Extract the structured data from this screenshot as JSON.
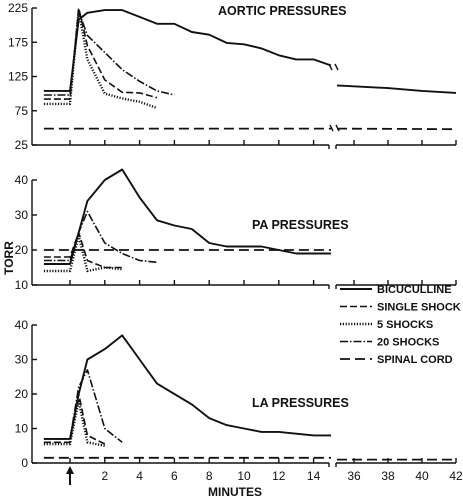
{
  "chart_data": [
    {
      "type": "line",
      "title": "AORTIC PRESSURES",
      "ylim": [
        25,
        225
      ],
      "yticks": [
        25,
        75,
        125,
        175,
        225
      ],
      "series": [
        {
          "name": "BICUCULLINE",
          "points": [
            [
              -1.5,
              104
            ],
            [
              0,
              104
            ],
            [
              0,
              104
            ],
            [
              0.5,
              208
            ],
            [
              1,
              218
            ],
            [
              2,
              222
            ],
            [
              3,
              222
            ],
            [
              4,
              212
            ],
            [
              5,
              202
            ],
            [
              6,
              202
            ],
            [
              7,
              190
            ],
            [
              8,
              186
            ],
            [
              9,
              174
            ],
            [
              10,
              172
            ],
            [
              11,
              166
            ],
            [
              12,
              156
            ],
            [
              13,
              150
            ],
            [
              14,
              150
            ],
            [
              15,
              141
            ],
            [
              35,
              112
            ],
            [
              38,
              108
            ],
            [
              40,
              104
            ],
            [
              42,
              101
            ]
          ]
        },
        {
          "name": "SINGLE SHOCK",
          "points": [
            [
              -1.5,
              92
            ],
            [
              0,
              92
            ],
            [
              0,
              92
            ],
            [
              0.5,
              225
            ],
            [
              1,
              170
            ],
            [
              2,
              120
            ],
            [
              3,
              102
            ],
            [
              4,
              101
            ],
            [
              5,
              94
            ]
          ]
        },
        {
          "name": "5 SHOCKS",
          "points": [
            [
              -1.5,
              85
            ],
            [
              0,
              85
            ],
            [
              0,
              85
            ],
            [
              0.5,
              222
            ],
            [
              1,
              150
            ],
            [
              2,
              100
            ],
            [
              3,
              93
            ],
            [
              4,
              88
            ],
            [
              5,
              79
            ]
          ]
        },
        {
          "name": "20 SHOCKS",
          "points": [
            [
              -1.5,
              98
            ],
            [
              0,
              98
            ],
            [
              0,
              98
            ],
            [
              0.5,
              220
            ],
            [
              1,
              185
            ],
            [
              2,
              160
            ],
            [
              3,
              135
            ],
            [
              4,
              118
            ],
            [
              5,
              104
            ],
            [
              6,
              98
            ]
          ]
        },
        {
          "name": "SPINAL CORD",
          "points": [
            [
              -1.5,
              49
            ],
            [
              15,
              49
            ],
            [
              35,
              49
            ],
            [
              42,
              48
            ]
          ]
        }
      ]
    },
    {
      "type": "line",
      "title": "PA PRESSURES",
      "ylabel": "TORR",
      "ylim": [
        10,
        40
      ],
      "yticks": [
        10,
        20,
        30,
        40
      ],
      "series": [
        {
          "name": "BICUCULLINE",
          "points": [
            [
              -1.5,
              16
            ],
            [
              0,
              16
            ],
            [
              0,
              16
            ],
            [
              0.5,
              25
            ],
            [
              1,
              34
            ],
            [
              2,
              40
            ],
            [
              3,
              43
            ],
            [
              4,
              35
            ],
            [
              5,
              28.5
            ],
            [
              6,
              27
            ],
            [
              7,
              26
            ],
            [
              8,
              22
            ],
            [
              9,
              21
            ],
            [
              10,
              21
            ],
            [
              11,
              21
            ],
            [
              12,
              20
            ],
            [
              13,
              19
            ],
            [
              14,
              19
            ],
            [
              15,
              19
            ]
          ]
        },
        {
          "name": "SINGLE SHOCK",
          "points": [
            [
              -1.5,
              18
            ],
            [
              0,
              18
            ],
            [
              0,
              18
            ],
            [
              0.5,
              25
            ],
            [
              1,
              17
            ],
            [
              2,
              15
            ],
            [
              3,
              15
            ]
          ]
        },
        {
          "name": "5 SHOCKS",
          "points": [
            [
              -1.5,
              14
            ],
            [
              0,
              14
            ],
            [
              0,
              14
            ],
            [
              0.5,
              24
            ],
            [
              1,
              14
            ],
            [
              2,
              15
            ],
            [
              3,
              14.5
            ]
          ]
        },
        {
          "name": "20 SHOCKS",
          "points": [
            [
              -1.5,
              17
            ],
            [
              0,
              17
            ],
            [
              0,
              17
            ],
            [
              0.5,
              25
            ],
            [
              1,
              31
            ],
            [
              2,
              22
            ],
            [
              3,
              19
            ],
            [
              4,
              17
            ],
            [
              5,
              16.5
            ]
          ]
        },
        {
          "name": "SPINAL CORD",
          "points": [
            [
              -1.5,
              20
            ],
            [
              15,
              20
            ]
          ]
        }
      ]
    },
    {
      "type": "line",
      "title": "LA PRESSURES",
      "ylim": [
        0,
        40
      ],
      "yticks": [
        0,
        10,
        20,
        30,
        40
      ],
      "xlabel": "MINUTES",
      "xticks": [
        "",
        "2",
        "4",
        "6",
        "8",
        "10",
        "12",
        "14",
        "36",
        "38",
        "40",
        "42"
      ],
      "series": [
        {
          "name": "BICUCULLINE",
          "points": [
            [
              -1.5,
              7
            ],
            [
              0,
              7
            ],
            [
              0,
              7
            ],
            [
              0.5,
              20
            ],
            [
              1,
              30
            ],
            [
              2,
              33
            ],
            [
              3,
              37
            ],
            [
              4,
              30
            ],
            [
              5,
              23
            ],
            [
              6,
              20
            ],
            [
              7,
              17
            ],
            [
              8,
              13
            ],
            [
              9,
              11
            ],
            [
              10,
              10
            ],
            [
              11,
              9
            ],
            [
              12,
              9
            ],
            [
              13,
              8.5
            ],
            [
              14,
              8
            ],
            [
              15,
              8
            ]
          ]
        },
        {
          "name": "SINGLE SHOCK",
          "points": [
            [
              -1.5,
              6
            ],
            [
              0,
              6
            ],
            [
              0,
              6
            ],
            [
              0.5,
              20
            ],
            [
              1,
              8
            ],
            [
              2,
              5.5
            ]
          ]
        },
        {
          "name": "5 SHOCKS",
          "points": [
            [
              -1.5,
              5.5
            ],
            [
              0,
              5.5
            ],
            [
              0,
              5.5
            ],
            [
              0.5,
              18
            ],
            [
              1,
              6
            ],
            [
              2,
              5
            ]
          ]
        },
        {
          "name": "20 SHOCKS",
          "points": [
            [
              -1.5,
              7
            ],
            [
              0,
              7
            ],
            [
              0,
              7
            ],
            [
              0.5,
              22
            ],
            [
              1,
              27
            ],
            [
              2,
              10
            ],
            [
              3,
              6
            ]
          ]
        },
        {
          "name": "SPINAL CORD",
          "points": [
            [
              -1.5,
              1.5
            ],
            [
              15,
              1.5
            ],
            [
              35,
              1
            ],
            [
              42,
              1
            ]
          ]
        }
      ]
    }
  ],
  "legend": {
    "placement": "right",
    "items": [
      "BICUCULLINE",
      "SINGLE SHOCK",
      "5 SHOCKS",
      "20 SHOCKS",
      "SPINAL CORD"
    ]
  },
  "marker": {
    "label": "injection-arrow",
    "x": 0
  }
}
